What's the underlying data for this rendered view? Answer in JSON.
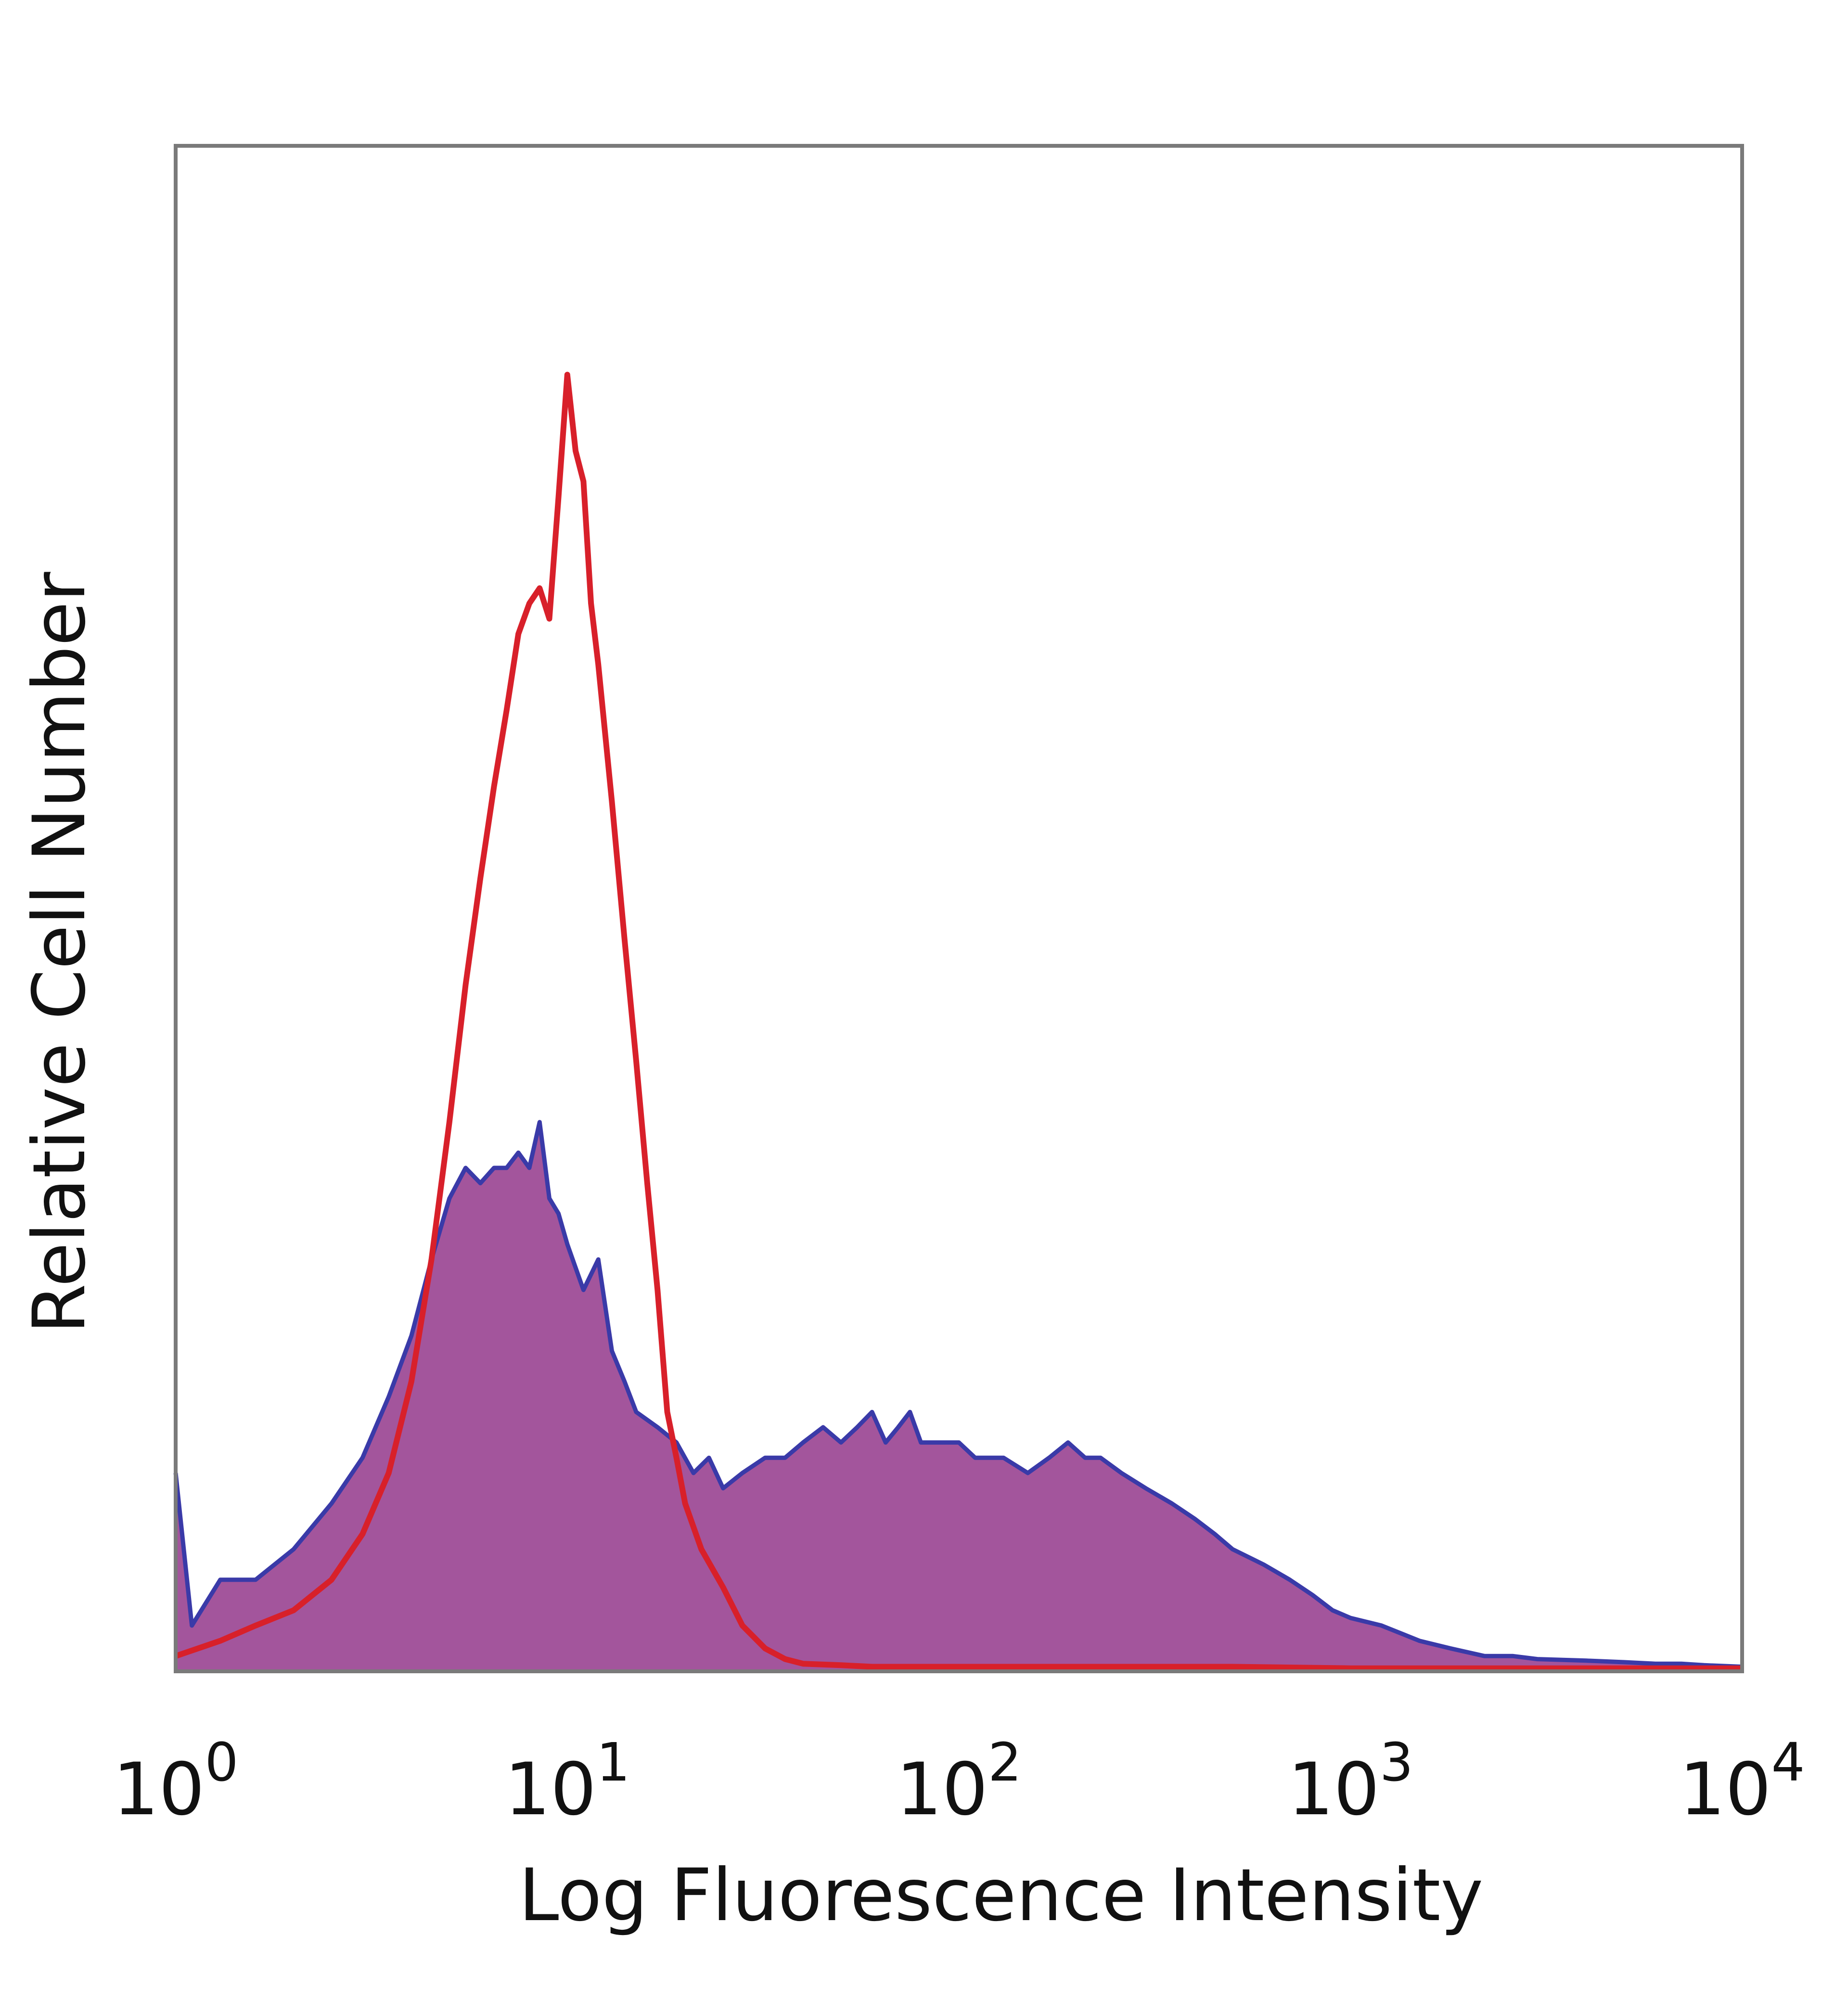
{
  "chart_data": {
    "type": "area",
    "title": "",
    "xlabel": "Log Fluorescence Intensity",
    "ylabel": "Relative Cell Number",
    "x_scale": "log",
    "xlim": [
      1,
      10000
    ],
    "ylim": [
      0,
      1
    ],
    "y_ticks_shown": false,
    "grid": false,
    "legend": "none",
    "x_tick_labels": [
      {
        "value": 1,
        "base": "10",
        "exp": "0"
      },
      {
        "value": 10,
        "base": "10",
        "exp": "1"
      },
      {
        "value": 100,
        "base": "10",
        "exp": "2"
      },
      {
        "value": 1000,
        "base": "10",
        "exp": "3"
      },
      {
        "value": 10000,
        "base": "10",
        "exp": "4"
      }
    ],
    "series": [
      {
        "style": "filled",
        "fill_color": "#a3559c",
        "line_color": "#3a3aa8",
        "x": [
          1,
          1.1,
          1.3,
          1.6,
          2,
          2.5,
          3,
          3.5,
          4,
          4.5,
          5,
          5.5,
          6,
          6.5,
          7,
          7.5,
          8,
          8.5,
          9,
          9.5,
          10,
          11,
          12,
          13,
          14,
          15,
          17,
          19,
          21,
          23,
          25,
          28,
          32,
          36,
          40,
          45,
          50,
          55,
          60,
          65,
          70,
          75,
          80,
          90,
          100,
          110,
          120,
          130,
          150,
          170,
          190,
          210,
          230,
          260,
          300,
          350,
          400,
          450,
          500,
          600,
          700,
          800,
          900,
          1000,
          1200,
          1500,
          1800,
          2200,
          2600,
          3000,
          4000,
          5000,
          6000,
          7000,
          8000,
          10000
        ],
        "y": [
          0.13,
          0.03,
          0.06,
          0.06,
          0.08,
          0.11,
          0.14,
          0.18,
          0.22,
          0.27,
          0.31,
          0.33,
          0.32,
          0.33,
          0.33,
          0.34,
          0.33,
          0.36,
          0.31,
          0.3,
          0.28,
          0.25,
          0.27,
          0.21,
          0.19,
          0.17,
          0.16,
          0.15,
          0.13,
          0.14,
          0.12,
          0.13,
          0.14,
          0.14,
          0.15,
          0.16,
          0.15,
          0.16,
          0.17,
          0.15,
          0.16,
          0.17,
          0.15,
          0.15,
          0.15,
          0.14,
          0.14,
          0.14,
          0.13,
          0.14,
          0.15,
          0.14,
          0.14,
          0.13,
          0.12,
          0.11,
          0.1,
          0.09,
          0.08,
          0.07,
          0.06,
          0.05,
          0.04,
          0.035,
          0.03,
          0.02,
          0.015,
          0.01,
          0.01,
          0.008,
          0.007,
          0.006,
          0.005,
          0.005,
          0.004,
          0.003
        ]
      },
      {
        "style": "line",
        "line_color": "#d8202a",
        "x": [
          1,
          1.3,
          1.6,
          2,
          2.5,
          3,
          3.5,
          4,
          4.5,
          5,
          5.5,
          6,
          6.5,
          7,
          7.5,
          8,
          8.5,
          9,
          9.5,
          10,
          10.5,
          11,
          11.5,
          12,
          13,
          14,
          15,
          16,
          17,
          18,
          19,
          20,
          22,
          25,
          28,
          32,
          36,
          40,
          50,
          60,
          80,
          100,
          150,
          200,
          300,
          500,
          1000,
          2000,
          5000,
          10000
        ],
        "y": [
          0.01,
          0.02,
          0.03,
          0.04,
          0.06,
          0.09,
          0.13,
          0.19,
          0.27,
          0.36,
          0.45,
          0.52,
          0.58,
          0.63,
          0.68,
          0.7,
          0.71,
          0.69,
          0.77,
          0.85,
          0.8,
          0.78,
          0.7,
          0.66,
          0.57,
          0.48,
          0.4,
          0.32,
          0.25,
          0.17,
          0.14,
          0.11,
          0.08,
          0.055,
          0.03,
          0.015,
          0.008,
          0.005,
          0.004,
          0.003,
          0.003,
          0.003,
          0.003,
          0.003,
          0.003,
          0.003,
          0.002,
          0.002,
          0.002,
          0.002
        ]
      }
    ]
  }
}
